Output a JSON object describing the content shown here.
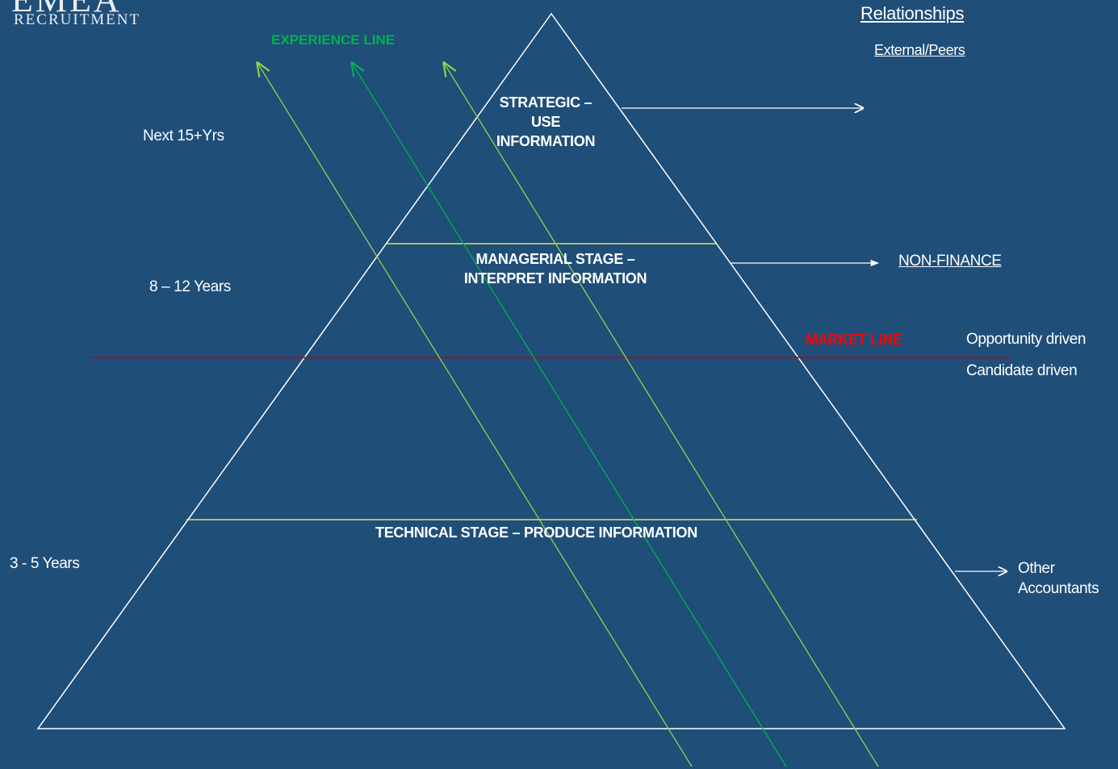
{
  "logo": {
    "mark": "EMEA",
    "subtitle": "RECRUITMENT"
  },
  "experience_line": {
    "label": "EXPERIENCE LINE",
    "color": "#00b050"
  },
  "market_line": {
    "label": "MARKET LINE",
    "color": "#ff0000"
  },
  "stages": {
    "strategic": [
      "STRATEGIC –",
      "USE",
      "INFORMATION"
    ],
    "managerial": [
      "MANAGERIAL STAGE –",
      "INTERPRET INFORMATION"
    ],
    "technical": "TECHNICAL STAGE – PRODUCE INFORMATION"
  },
  "timeframes": {
    "strategic": "Next 15+Yrs",
    "managerial": "8 – 12 Years",
    "technical": "3 - 5 Years"
  },
  "relationships": {
    "heading": "Relationships",
    "strategic": "External/Peers",
    "managerial": "NON-FINANCE",
    "technical": [
      "Other",
      "Accountants"
    ]
  },
  "market": {
    "above": "Opportunity driven",
    "below": "Candidate driven"
  },
  "colors": {
    "background": "#1f4e79",
    "pyramid": "#ffffff",
    "stage_divider": "#ffff66",
    "arrow_light": "#92d050",
    "arrow_dark": "#00b050"
  }
}
